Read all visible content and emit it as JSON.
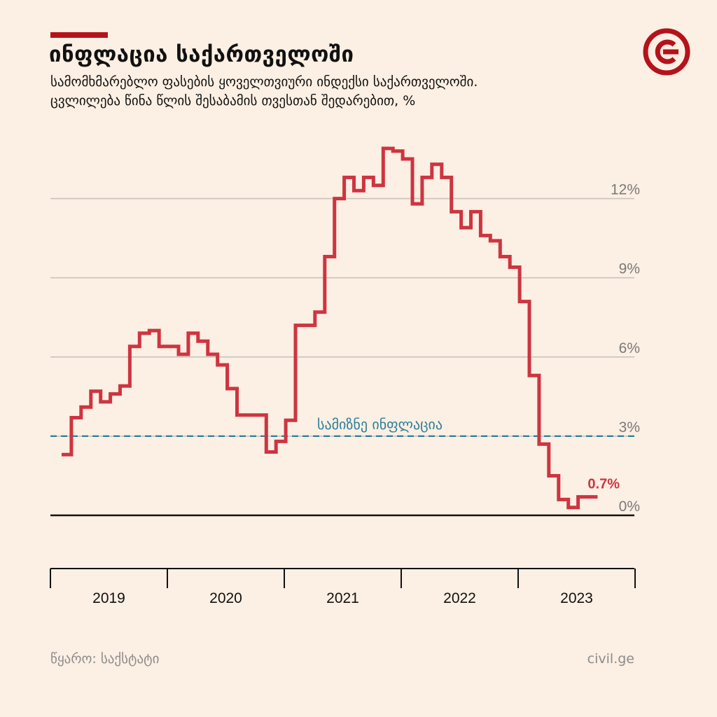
{
  "header": {
    "title": "ინფლაცია საქართველოში",
    "subtitle_line1": "სამომხმარებლო ფასების ყოველთვიური ინდექსი საქართველოში.",
    "subtitle_line2": "ცვლილება წინა წლის შესაბამის თვესთან შედარებით, %"
  },
  "footer": {
    "source": "წყარო: საქსტატი",
    "site": "civil.ge"
  },
  "colors": {
    "line": "#cd3540",
    "target": "#2a7f9a",
    "grid": "#c9c3bd",
    "brand": "#b5121b"
  },
  "chart_data": {
    "type": "line",
    "step": true,
    "ylim": [
      -2,
      14.5
    ],
    "grid": true,
    "y_ticks": [
      {
        "value": 12,
        "label": "12%"
      },
      {
        "value": 9,
        "label": "9%"
      },
      {
        "value": 6,
        "label": "6%"
      },
      {
        "value": 3,
        "label": "3%"
      },
      {
        "value": 0,
        "label": "0%"
      }
    ],
    "x_labels": [
      "2019",
      "2020",
      "2021",
      "2022",
      "2023"
    ],
    "target": {
      "value": 3,
      "label": "სამიზნე ინფლაცია"
    },
    "end_label": "0.7%",
    "series": [
      {
        "start": "2019-01",
        "values": [
          2.3,
          3.7,
          4.1,
          4.7,
          4.3,
          4.6,
          4.9,
          6.4,
          6.9,
          7.0,
          6.4,
          6.4,
          6.1,
          6.9,
          6.6,
          6.1,
          5.7,
          4.8,
          3.8,
          3.8,
          3.8,
          2.4,
          2.8,
          3.6,
          7.2,
          7.2,
          7.7,
          9.8,
          12.0,
          12.8,
          12.3,
          12.8,
          12.5,
          13.9,
          13.8,
          13.5,
          11.8,
          12.8,
          13.3,
          12.8,
          11.5,
          10.9,
          11.5,
          10.6,
          10.4,
          9.8,
          9.4,
          8.1,
          5.3,
          2.7,
          1.5,
          0.6,
          0.3,
          0.7,
          0.7
        ]
      }
    ]
  }
}
